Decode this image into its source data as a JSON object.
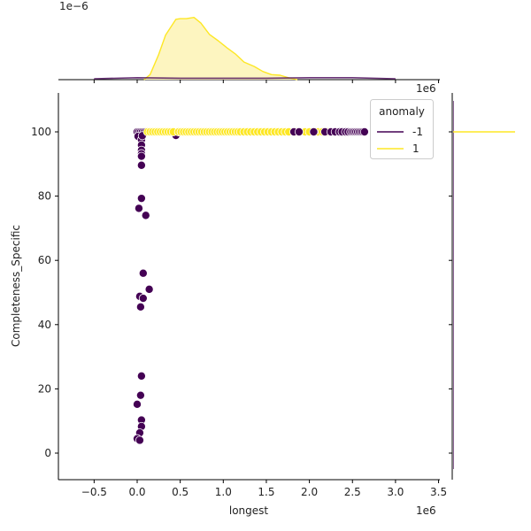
{
  "chart_data": {
    "type": "scatter",
    "subtype": "jointplot",
    "xlabel": "longest",
    "ylabel": "Completeness_Specific",
    "x_offset_text": "1e6",
    "top_marginal_offset_text": "1e−6",
    "top_marginal_x_offset_text": "1e6",
    "xlim": [
      -0.92,
      3.57
    ],
    "ylim": [
      -8.5,
      112
    ],
    "xticks": [
      -0.5,
      0.0,
      0.5,
      1.0,
      1.5,
      2.0,
      2.5,
      3.0,
      3.5
    ],
    "xtick_labels": [
      "−0.5",
      "0.0",
      "0.5",
      "1.0",
      "1.5",
      "2.0",
      "2.5",
      "3.0",
      "3.5"
    ],
    "yticks": [
      0,
      20,
      40,
      60,
      80,
      100
    ],
    "ytick_labels": [
      "0",
      "20",
      "40",
      "60",
      "80",
      "100"
    ],
    "grid": false,
    "legend": {
      "title": "anomaly",
      "position": "upper right",
      "entries": [
        {
          "label": "-1",
          "color": "#440154"
        },
        {
          "label": "1",
          "color": "#fde725"
        }
      ]
    },
    "series": [
      {
        "name": "-1",
        "color": "#440154",
        "points": [
          [
            0.0,
            100
          ],
          [
            0.02,
            100
          ],
          [
            0.04,
            100
          ],
          [
            0.06,
            100
          ],
          [
            0.08,
            100
          ],
          [
            0.1,
            100
          ],
          [
            0.01,
            98.6
          ],
          [
            0.05,
            97.5
          ],
          [
            0.06,
            98.8
          ],
          [
            0.45,
            98.9
          ],
          [
            0.05,
            95.9
          ],
          [
            0.05,
            94.3
          ],
          [
            0.05,
            93.2
          ],
          [
            0.05,
            92.4
          ],
          [
            0.05,
            89.6
          ],
          [
            0.05,
            79.3
          ],
          [
            0.02,
            76.2
          ],
          [
            0.1,
            74.0
          ],
          [
            0.07,
            56.0
          ],
          [
            0.14,
            51.0
          ],
          [
            0.03,
            48.8
          ],
          [
            0.07,
            48.2
          ],
          [
            0.04,
            45.5
          ],
          [
            0.05,
            24.0
          ],
          [
            0.04,
            18.0
          ],
          [
            0.0,
            15.2
          ],
          [
            0.05,
            10.3
          ],
          [
            0.05,
            8.3
          ],
          [
            0.03,
            6.3
          ],
          [
            0.0,
            4.5
          ],
          [
            0.03,
            4.0
          ],
          [
            1.82,
            100
          ],
          [
            1.88,
            100
          ],
          [
            2.05,
            100
          ],
          [
            2.18,
            100
          ],
          [
            2.25,
            100
          ],
          [
            2.3,
            100
          ],
          [
            2.35,
            100
          ],
          [
            2.38,
            100
          ],
          [
            2.42,
            100
          ],
          [
            2.45,
            100
          ],
          [
            2.48,
            100
          ],
          [
            2.5,
            100
          ],
          [
            2.52,
            100
          ],
          [
            2.54,
            100
          ],
          [
            2.56,
            100
          ],
          [
            2.58,
            100
          ],
          [
            2.6,
            100
          ],
          [
            2.62,
            100
          ],
          [
            2.64,
            100
          ]
        ]
      },
      {
        "name": "1",
        "color": "#fde725",
        "points": [
          [
            0.12,
            100
          ],
          [
            0.15,
            100
          ],
          [
            0.18,
            100
          ],
          [
            0.21,
            100
          ],
          [
            0.24,
            100
          ],
          [
            0.27,
            100
          ],
          [
            0.3,
            100
          ],
          [
            0.33,
            100
          ],
          [
            0.36,
            100
          ],
          [
            0.39,
            100
          ],
          [
            0.42,
            100
          ],
          [
            0.48,
            100
          ],
          [
            0.51,
            100
          ],
          [
            0.54,
            100
          ],
          [
            0.57,
            100
          ],
          [
            0.6,
            100
          ],
          [
            0.63,
            100
          ],
          [
            0.66,
            100
          ],
          [
            0.69,
            100
          ],
          [
            0.72,
            100
          ],
          [
            0.75,
            100
          ],
          [
            0.78,
            100
          ],
          [
            0.81,
            100
          ],
          [
            0.84,
            100
          ],
          [
            0.87,
            100
          ],
          [
            0.9,
            100
          ],
          [
            0.93,
            100
          ],
          [
            0.96,
            100
          ],
          [
            0.99,
            100
          ],
          [
            1.02,
            100
          ],
          [
            1.05,
            100
          ],
          [
            1.08,
            100
          ],
          [
            1.11,
            100
          ],
          [
            1.14,
            100
          ],
          [
            1.17,
            100
          ],
          [
            1.2,
            100
          ],
          [
            1.24,
            100
          ],
          [
            1.28,
            100
          ],
          [
            1.32,
            100
          ],
          [
            1.36,
            100
          ],
          [
            1.4,
            100
          ],
          [
            1.44,
            100
          ],
          [
            1.48,
            100
          ],
          [
            1.52,
            100
          ],
          [
            1.56,
            100
          ],
          [
            1.6,
            100
          ],
          [
            1.64,
            100
          ],
          [
            1.68,
            100
          ],
          [
            1.72,
            100
          ],
          [
            1.76,
            100
          ],
          [
            1.85,
            100
          ],
          [
            1.95,
            100
          ],
          [
            2.0,
            100
          ],
          [
            2.1,
            100
          ],
          [
            2.15,
            100
          ],
          [
            2.21,
            100
          ]
        ]
      }
    ],
    "top_marginal": {
      "type": "kde",
      "series": [
        {
          "name": "1",
          "color": "#fde725",
          "fill": "#fdf5c0",
          "x": [
            0.08,
            0.15,
            0.25,
            0.33,
            0.45,
            0.5,
            0.57,
            0.66,
            0.74,
            0.84,
            0.94,
            1.04,
            1.14,
            1.24,
            1.36,
            1.46,
            1.56,
            1.66,
            1.76,
            1.86
          ],
          "density": [
            0.0,
            0.08,
            0.4,
            0.71,
            0.96,
            0.97,
            0.97,
            0.99,
            0.9,
            0.72,
            0.62,
            0.51,
            0.41,
            0.28,
            0.21,
            0.13,
            0.08,
            0.07,
            0.03,
            0.0
          ]
        },
        {
          "name": "-1",
          "color": "#440154",
          "x": [
            -0.5,
            0.0,
            0.5,
            1.0,
            1.5,
            2.0,
            2.5,
            3.0
          ],
          "density": [
            0.0,
            0.02,
            0.01,
            0.01,
            0.01,
            0.02,
            0.02,
            0.0
          ]
        }
      ]
    },
    "right_marginal": {
      "type": "kde",
      "series": [
        {
          "name": "1",
          "color": "#fde725",
          "y": 100,
          "note": "degenerate spike at 100"
        },
        {
          "name": "-1",
          "color": "#440154",
          "note": "near-flat along axis"
        }
      ]
    }
  }
}
